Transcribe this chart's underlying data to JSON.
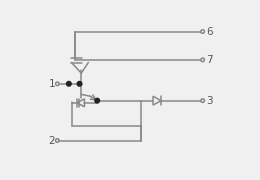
{
  "bg_color": "#f0f0f0",
  "line_color": "#888888",
  "lw": 1.1,
  "dot_color": "#222222",
  "dot_r": 0.013,
  "term_r": 0.01,
  "fs": 7.5,
  "label_color": "#555555"
}
